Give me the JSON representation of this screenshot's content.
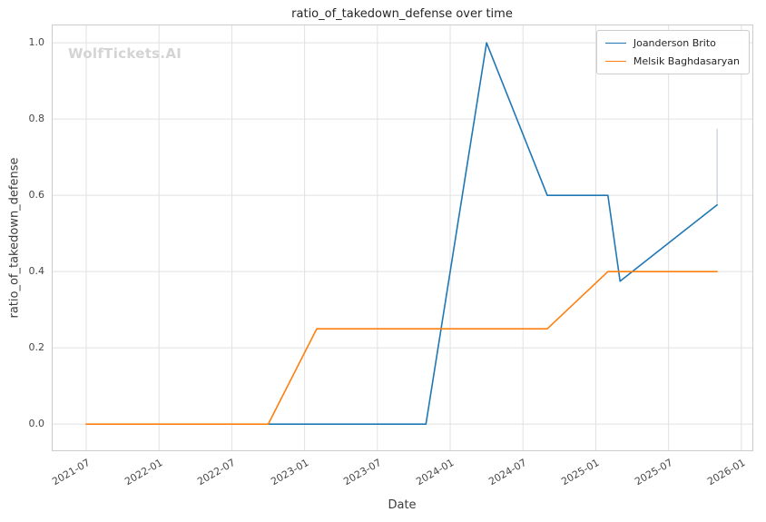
{
  "watermark": "WolfTickets.AI",
  "chart_data": {
    "type": "line",
    "title": "ratio_of_takedown_defense over time",
    "xlabel": "Date",
    "ylabel": "ratio_of_takedown_defense",
    "grid": true,
    "legend_position": "upper right",
    "xlim": [
      2021.263,
      2026.082
    ],
    "ylim": [
      -0.071,
      1.048
    ],
    "x_ticks": [
      {
        "value": 2021.5,
        "label": "2021-07"
      },
      {
        "value": 2022.0,
        "label": "2022-01"
      },
      {
        "value": 2022.5,
        "label": "2022-07"
      },
      {
        "value": 2023.0,
        "label": "2023-01"
      },
      {
        "value": 2023.5,
        "label": "2023-07"
      },
      {
        "value": 2024.0,
        "label": "2024-01"
      },
      {
        "value": 2024.5,
        "label": "2024-07"
      },
      {
        "value": 2025.0,
        "label": "2025-01"
      },
      {
        "value": 2025.5,
        "label": "2025-07"
      },
      {
        "value": 2026.0,
        "label": "2026-01"
      }
    ],
    "y_ticks": [
      {
        "value": 0.0,
        "label": "0.0"
      },
      {
        "value": 0.2,
        "label": "0.2"
      },
      {
        "value": 0.4,
        "label": "0.4"
      },
      {
        "value": 0.6,
        "label": "0.6"
      },
      {
        "value": 0.8,
        "label": "0.8"
      },
      {
        "value": 1.0,
        "label": "1.0"
      }
    ],
    "series": [
      {
        "name": "Joanderson Brito",
        "color": "#1f77b4",
        "points": [
          [
            "2022-10",
            0.0
          ],
          [
            "2023-11",
            0.0
          ],
          [
            "2024-04",
            1.0
          ],
          [
            "2024-09",
            0.6
          ],
          [
            "2025-02",
            0.6
          ],
          [
            "2025-03",
            0.375
          ],
          [
            "2025-11",
            0.575
          ]
        ]
      },
      {
        "name": "Melsik Baghdasaryan",
        "color": "#ff7f0e",
        "points": [
          [
            "2021-07",
            0.0
          ],
          [
            "2022-10",
            0.0
          ],
          [
            "2023-02",
            0.25
          ],
          [
            "2024-09",
            0.25
          ],
          [
            "2025-02",
            0.4
          ],
          [
            "2025-11",
            0.4
          ]
        ]
      }
    ],
    "annotations": [
      {
        "type": "vline",
        "x": "2025-11",
        "y0": 0.575,
        "y1": 0.775,
        "color": "#b7c6d6",
        "width": 1
      }
    ],
    "colors": {
      "grid": "#e1e1e1",
      "spine": "#cccccc",
      "tick_text": "#474747",
      "title_text": "#262626",
      "watermark_text": "#d4d4d4"
    }
  }
}
